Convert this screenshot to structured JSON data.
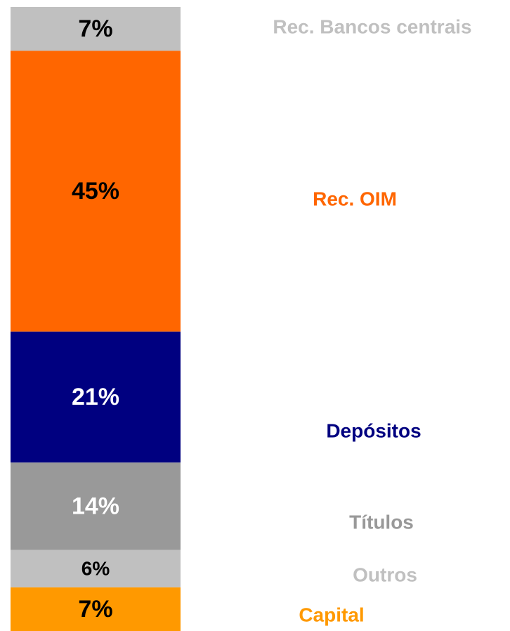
{
  "chart_data": {
    "type": "stacked-bar",
    "series": [
      {
        "name": "Capital",
        "color": "#ff9900",
        "label_color": "#ff9900",
        "value_label_color": "#000000",
        "values": [
          7
        ],
        "value_labels": [
          "7%"
        ]
      },
      {
        "name": "Outros",
        "color": "#c0c0c0",
        "label_color": "#c0c0c0",
        "value_label_color": "#000000",
        "values": [
          6
        ],
        "value_labels": [
          "6%"
        ]
      },
      {
        "name": "Títulos",
        "color": "#999999",
        "label_color": "#999999",
        "value_label_color": "#ffffff",
        "values": [
          14
        ],
        "value_labels": [
          "14%"
        ]
      },
      {
        "name": "Depósitos",
        "color": "#000080",
        "label_color": "#000080",
        "value_label_color": "#ffffff",
        "values": [
          21
        ],
        "value_labels": [
          "21%"
        ]
      },
      {
        "name": "Rec. OIM",
        "color": "#ff6600",
        "label_color": "#ff6600",
        "value_label_color": "#000000",
        "values": [
          45
        ],
        "value_labels": [
          "45%"
        ]
      },
      {
        "name": "Rec. Bancos centrais",
        "color": "#c0c0c0",
        "label_color": "#c0c0c0",
        "value_label_color": "#000000",
        "values": [
          7
        ],
        "value_labels": [
          "7%"
        ]
      }
    ]
  }
}
